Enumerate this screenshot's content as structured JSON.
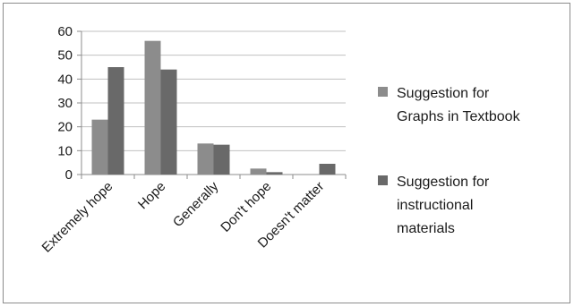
{
  "chart_data": {
    "type": "bar",
    "title": "",
    "xlabel": "",
    "ylabel": "",
    "categories": [
      "Extremely hope",
      "Hope",
      "Generally",
      "Don't hope",
      "Doesn't matter"
    ],
    "series": [
      {
        "name": "Suggestion for Graphs in Textbook",
        "color": "#8c8c8c",
        "values": [
          23,
          56,
          13,
          2.5,
          0
        ]
      },
      {
        "name": "Suggestion for instructional materials",
        "color": "#696969",
        "values": [
          45,
          44,
          12.5,
          1,
          4.5
        ]
      }
    ],
    "ylim": [
      0,
      60
    ],
    "yticks": [
      0,
      10,
      20,
      30,
      40,
      50,
      60
    ],
    "grid": true,
    "legend_position": "right"
  },
  "legend": {
    "items": [
      {
        "lines": [
          "Suggestion for",
          "Graphs in Textbook"
        ]
      },
      {
        "lines": [
          "Suggestion for",
          "instructional",
          "materials"
        ]
      }
    ]
  }
}
